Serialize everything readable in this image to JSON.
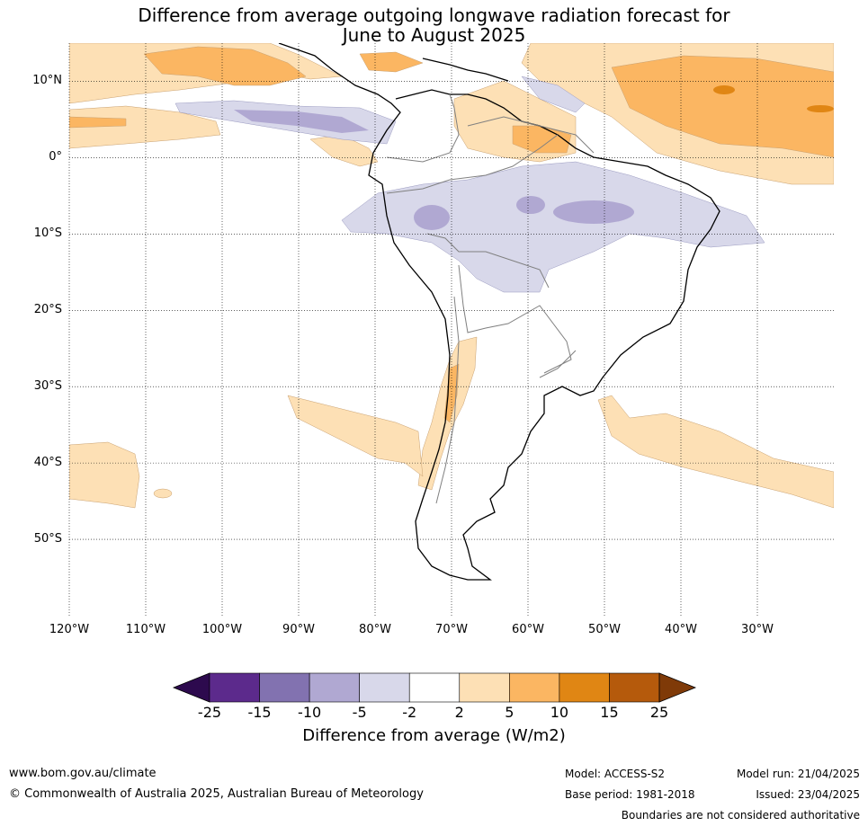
{
  "title": {
    "line1": "Difference from average outgoing longwave radiation forecast for",
    "line2": "June to August 2025"
  },
  "map": {
    "lat_labels": [
      "10°N",
      "0°",
      "10°S",
      "20°S",
      "30°S",
      "40°S",
      "50°S"
    ],
    "lat_values": [
      10,
      0,
      -10,
      -20,
      -30,
      -40,
      -50
    ],
    "lon_labels": [
      "120°W",
      "110°W",
      "100°W",
      "90°W",
      "80°W",
      "70°W",
      "60°W",
      "50°W",
      "40°W",
      "30°W"
    ],
    "lon_values": [
      -120,
      -110,
      -100,
      -90,
      -80,
      -70,
      -60,
      -50,
      -40,
      -30
    ],
    "extent": {
      "lon_min": -120,
      "lon_max": -20,
      "lat_min": -60,
      "lat_max": 15
    },
    "gridlines": true
  },
  "colorbar": {
    "title": "Difference from average (W/m2)",
    "labels": [
      "-25",
      "-15",
      "-10",
      "-5",
      "-2",
      "2",
      "5",
      "10",
      "15",
      "25"
    ],
    "colors": [
      "#2d0a4e",
      "#5c2a8c",
      "#8272b0",
      "#b0a8d2",
      "#d8d8ea",
      "#ffffff",
      "#fde0b5",
      "#fbb662",
      "#e08614",
      "#b55a0c",
      "#7f3a08"
    ]
  },
  "footer": {
    "website": "www.bom.gov.au/climate",
    "copyright": "© Commonwealth of Australia 2025, Australian Bureau of Meteorology",
    "model": "Model: ACCESS-S2",
    "base_period": "Base period: 1981-2018",
    "model_run": "Model run: 21/04/2025",
    "issued": "Issued: 23/04/2025",
    "disclaimer": "Boundaries are not considered authoritative"
  }
}
